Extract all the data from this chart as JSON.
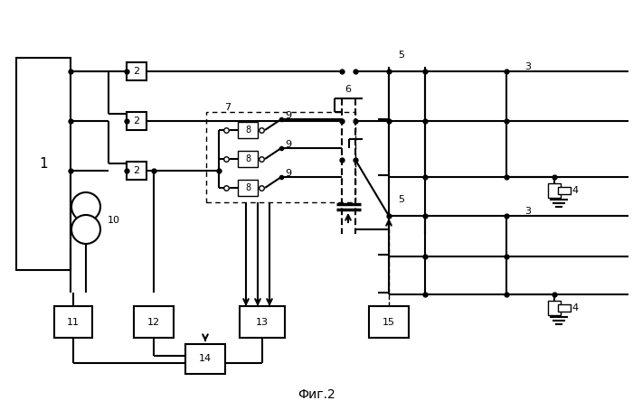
{
  "title": "Фиг.2",
  "bg": "#ffffff",
  "lc": "#000000",
  "lw": 1.5,
  "lw_thin": 1.0,
  "lw_thick": 2.5,
  "fs": 9,
  "fs_small": 8,
  "fs_big": 11
}
